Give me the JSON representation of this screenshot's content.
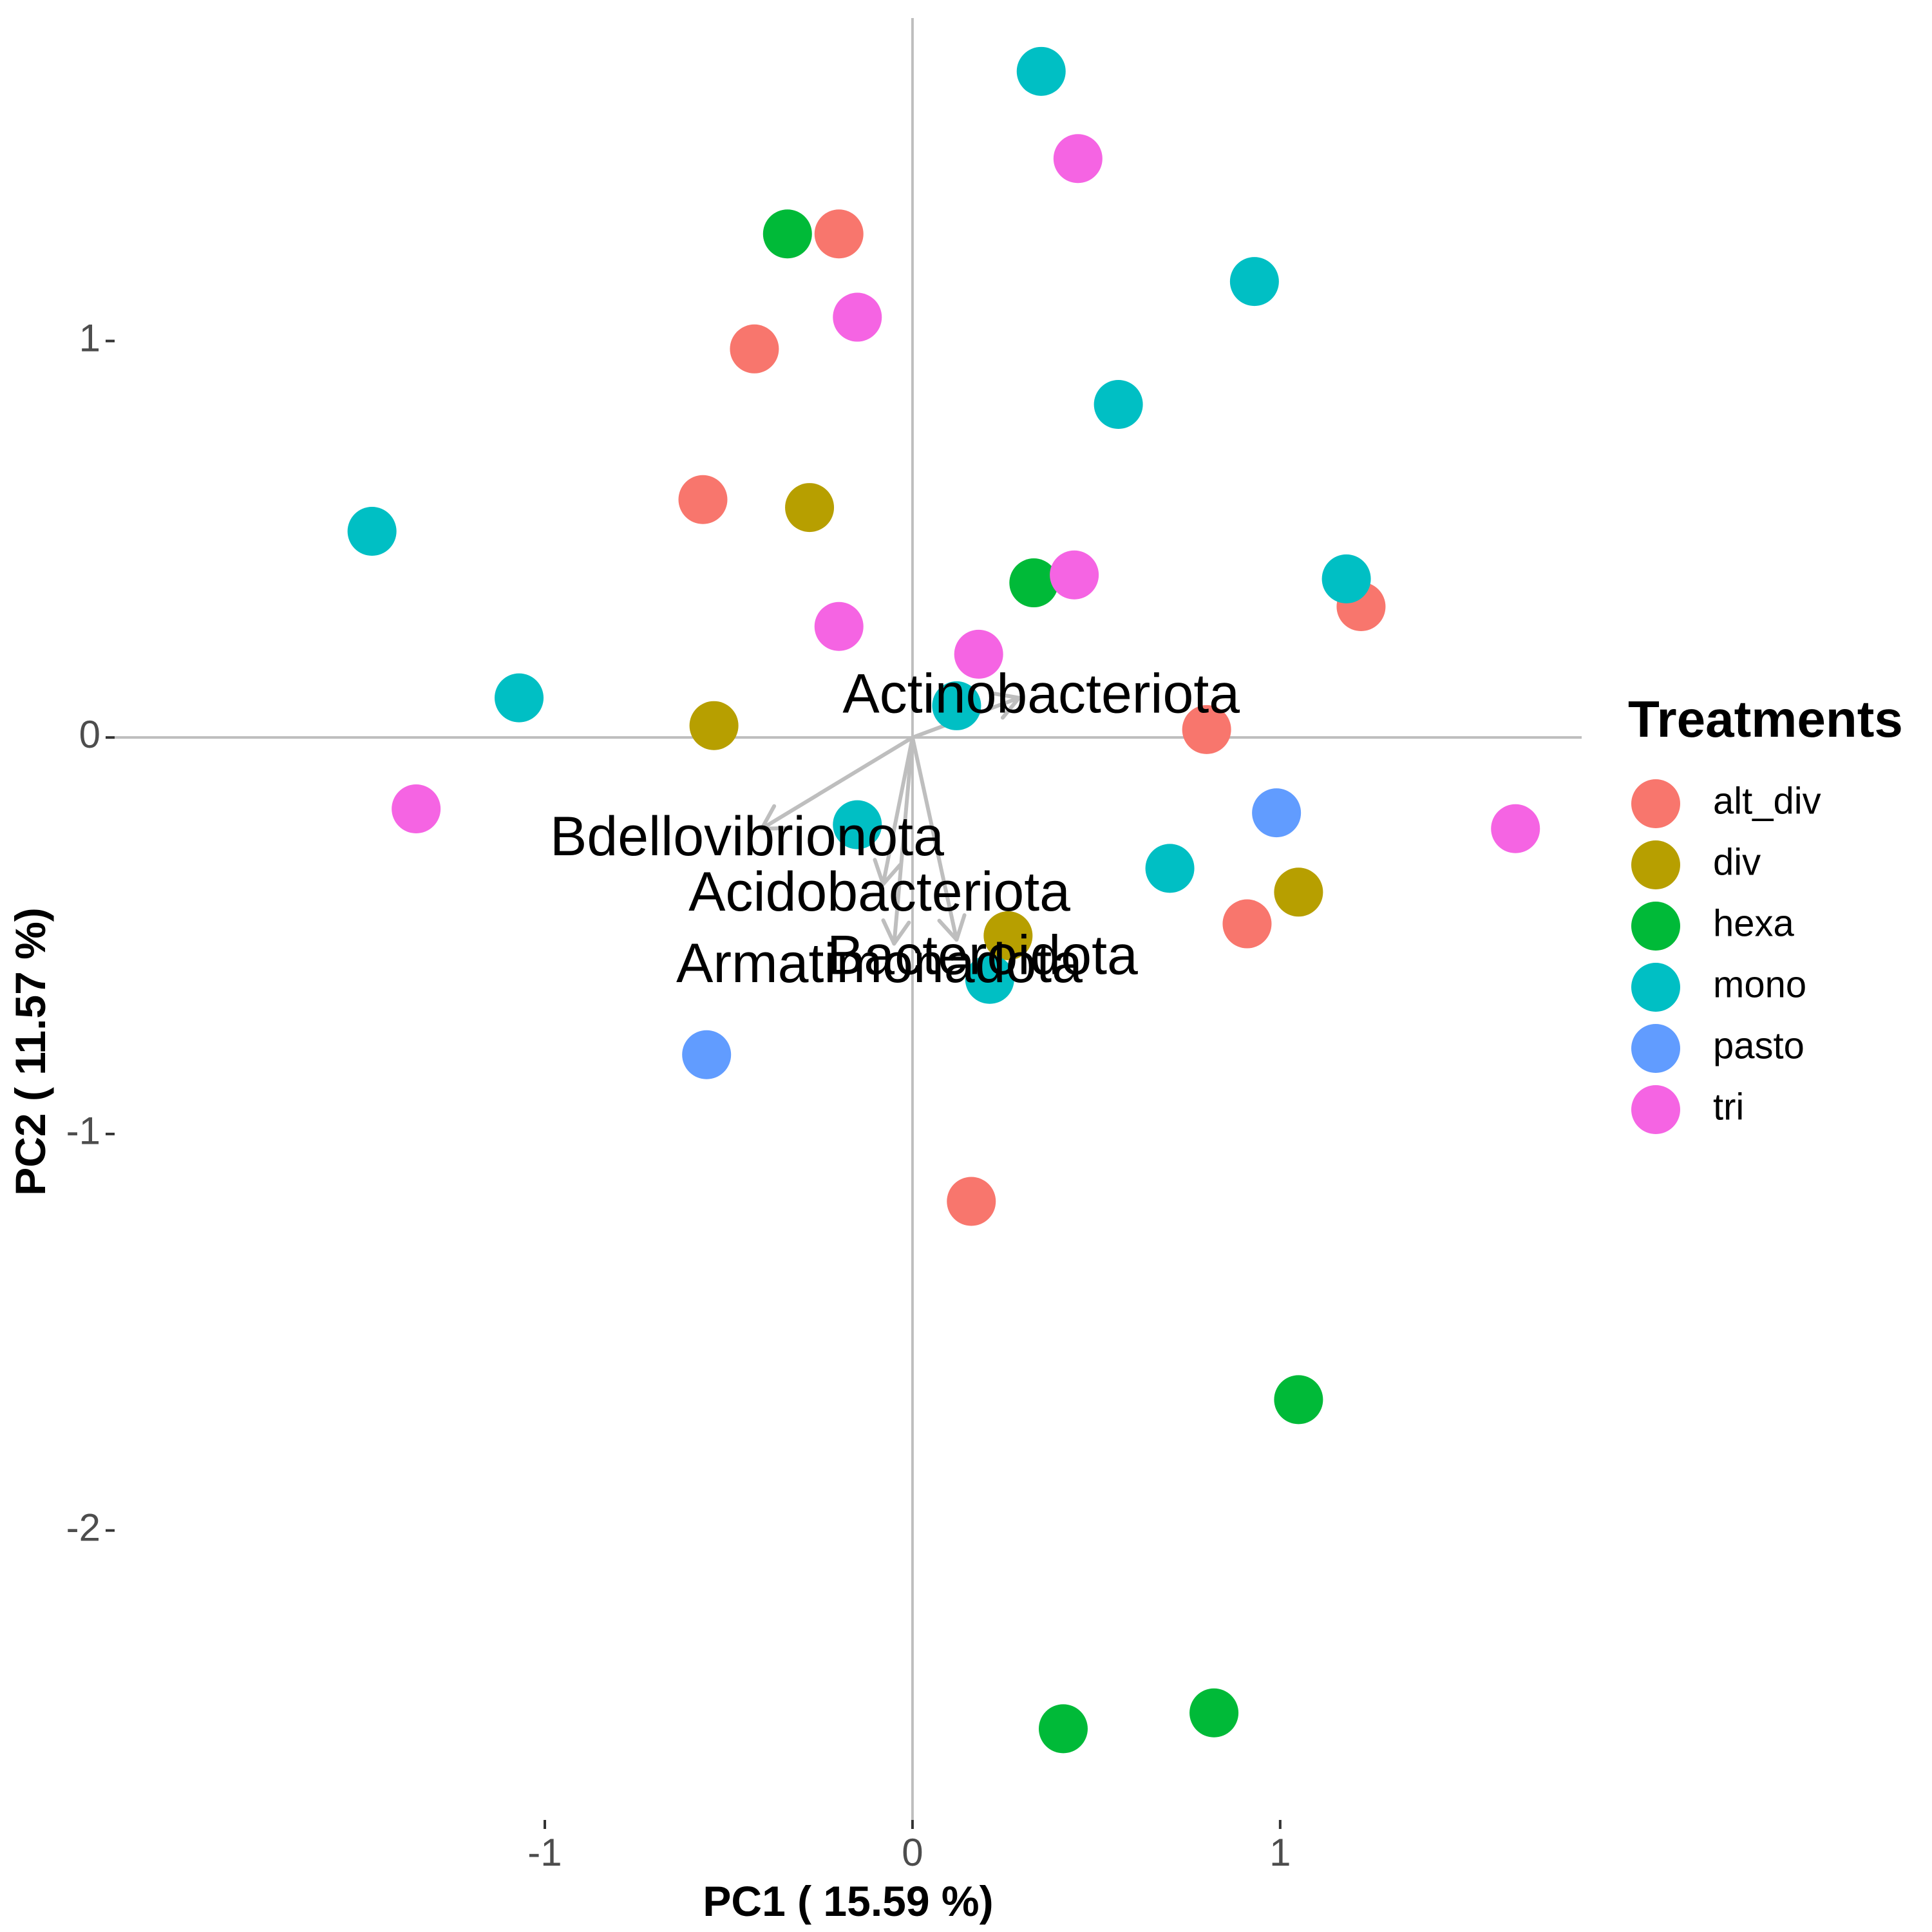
{
  "chart_data": {
    "type": "scatter",
    "xlabel": "PC1 ( 15.59 %)",
    "ylabel": "PC2 ( 11.57 %)",
    "xlim": [
      -2.17,
      1.82
    ],
    "ylim": [
      -2.73,
      1.86
    ],
    "xticks": [
      -1,
      0,
      1
    ],
    "yticks": [
      -2,
      -1,
      0,
      1
    ],
    "tick_labels_x": [
      "-1",
      "0",
      "1"
    ],
    "tick_labels_y": [
      "-2",
      "-1",
      "0",
      "1"
    ],
    "grid": false,
    "reference_lines": [
      {
        "axis": "x",
        "value": 0
      },
      {
        "axis": "y",
        "value": 0
      }
    ],
    "legend": {
      "title": "Treatments",
      "position": "right",
      "entries": [
        "alt_div",
        "div",
        "hexa",
        "mono",
        "pasto",
        "tri"
      ]
    },
    "series": [
      {
        "name": "alt_div",
        "color": "#F8766D",
        "points": [
          {
            "x": -0.2,
            "y": 1.27
          },
          {
            "x": -0.43,
            "y": 0.98
          },
          {
            "x": -0.57,
            "y": 0.6
          },
          {
            "x": 1.22,
            "y": 0.33
          },
          {
            "x": 0.8,
            "y": 0.02
          },
          {
            "x": 0.91,
            "y": -0.47
          },
          {
            "x": 0.16,
            "y": -1.17
          }
        ]
      },
      {
        "name": "div",
        "color": "#B79F00",
        "points": [
          {
            "x": -0.28,
            "y": 0.58
          },
          {
            "x": -0.54,
            "y": 0.03
          },
          {
            "x": 1.05,
            "y": -0.39
          },
          {
            "x": 0.26,
            "y": -0.5
          }
        ]
      },
      {
        "name": "hexa",
        "color": "#00BA38",
        "points": [
          {
            "x": -0.34,
            "y": 1.27
          },
          {
            "x": 0.33,
            "y": 0.39
          },
          {
            "x": 1.05,
            "y": -1.67
          },
          {
            "x": 0.82,
            "y": -2.46
          },
          {
            "x": 0.41,
            "y": -2.5
          }
        ]
      },
      {
        "name": "mono",
        "color": "#00BFC4",
        "points": [
          {
            "x": 0.35,
            "y": 1.68
          },
          {
            "x": 0.93,
            "y": 1.15
          },
          {
            "x": 0.56,
            "y": 0.84
          },
          {
            "x": -1.47,
            "y": 0.52
          },
          {
            "x": 1.18,
            "y": 0.4
          },
          {
            "x": -1.07,
            "y": 0.1
          },
          {
            "x": 0.12,
            "y": 0.08
          },
          {
            "x": -0.15,
            "y": -0.22
          },
          {
            "x": 0.7,
            "y": -0.33
          },
          {
            "x": 0.21,
            "y": -0.61
          }
        ]
      },
      {
        "name": "pasto",
        "color": "#619CFF",
        "points": [
          {
            "x": 0.99,
            "y": -0.19
          },
          {
            "x": -0.56,
            "y": -0.8
          }
        ]
      },
      {
        "name": "tri",
        "color": "#F564E3",
        "points": [
          {
            "x": 0.45,
            "y": 1.46
          },
          {
            "x": -0.15,
            "y": 1.06
          },
          {
            "x": 0.44,
            "y": 0.41
          },
          {
            "x": -0.2,
            "y": 0.28
          },
          {
            "x": 0.18,
            "y": 0.21
          },
          {
            "x": -1.35,
            "y": -0.18
          },
          {
            "x": 1.64,
            "y": -0.23
          }
        ]
      }
    ],
    "loadings": [
      {
        "label": "Actinobacteriota",
        "x": 0.29,
        "y": 0.1
      },
      {
        "label": "Bdellovibrionota",
        "x": -0.41,
        "y": -0.23
      },
      {
        "label": "Acidobacteriota",
        "x": -0.08,
        "y": -0.37
      },
      {
        "label": "Bacteroidota",
        "x": 0.12,
        "y": -0.51
      },
      {
        "label": "Armatimonadota",
        "x": -0.05,
        "y": -0.52
      }
    ],
    "loading_labels": [
      {
        "label": "Actinobacteriota",
        "x": 0.35,
        "y": 0.1
      },
      {
        "label": "Bdellovibrionota",
        "x": -0.45,
        "y": -0.26
      },
      {
        "label": "Acidobacteriota",
        "x": -0.09,
        "y": -0.4
      },
      {
        "label": "Bacteroidota",
        "x": 0.19,
        "y": -0.56
      },
      {
        "label": "Armatimonadota",
        "x": -0.09,
        "y": -0.58
      }
    ],
    "loading_color": "#BEBEBE",
    "axis_line_color": "#BEBEBE"
  }
}
